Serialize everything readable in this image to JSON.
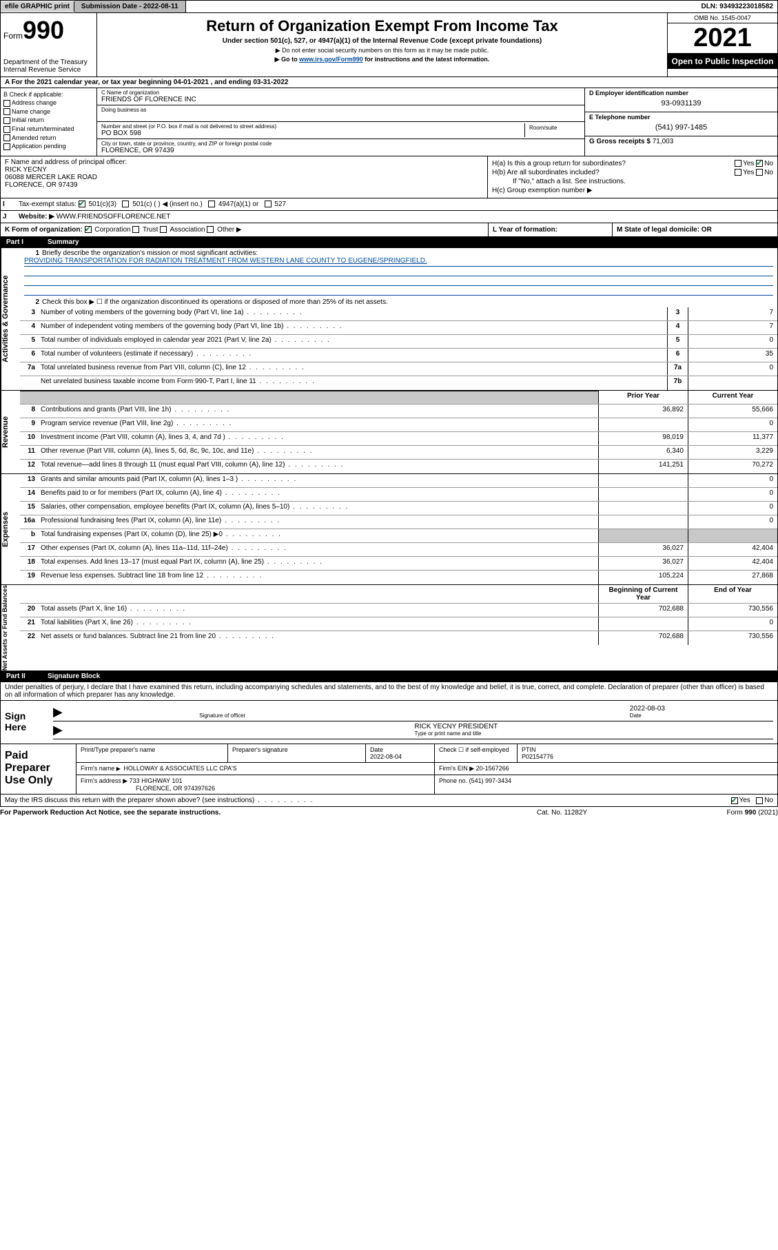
{
  "topbar": {
    "efile": "efile GRAPHIC print",
    "subdate_label": "Submission Date - 2022-08-11",
    "dln": "DLN: 93493223018582"
  },
  "header": {
    "form_label": "Form",
    "form_num": "990",
    "title": "Return of Organization Exempt From Income Tax",
    "subtitle": "Under section 501(c), 527, or 4947(a)(1) of the Internal Revenue Code (except private foundations)",
    "note1": "▶ Do not enter social security numbers on this form as it may be made public.",
    "note2_pre": "▶ Go to ",
    "note2_link": "www.irs.gov/Form990",
    "note2_post": " for instructions and the latest information.",
    "dept": "Department of the Treasury\nInternal Revenue Service",
    "omb": "OMB No. 1545-0047",
    "year": "2021",
    "open_public": "Open to Public Inspection"
  },
  "section_a": "A For the 2021 calendar year, or tax year beginning 04-01-2021   , and ending 03-31-2022",
  "col_b": {
    "label": "B Check if applicable:",
    "opts": [
      "Address change",
      "Name change",
      "Initial return",
      "Final return/terminated",
      "Amended return",
      "Application pending"
    ]
  },
  "col_c": {
    "name_label": "C Name of organization",
    "name": "FRIENDS OF FLORENCE INC",
    "dba_label": "Doing business as",
    "addr_label": "Number and street (or P.O. box if mail is not delivered to street address)",
    "room_label": "Room/suite",
    "addr": "PO BOX 598",
    "city_label": "City or town, state or province, country, and ZIP or foreign postal code",
    "city": "FLORENCE, OR  97439"
  },
  "col_d": {
    "ein_label": "D Employer identification number",
    "ein": "93-0931139",
    "phone_label": "E Telephone number",
    "phone": "(541) 997-1485",
    "gross_label": "G Gross receipts $",
    "gross": "71,003"
  },
  "block_f": {
    "label": "F  Name and address of principal officer:",
    "name": "RICK YECNY",
    "addr1": "06088 MERCER LAKE ROAD",
    "addr2": "FLORENCE, OR  97439"
  },
  "block_h": {
    "ha": "H(a)  Is this a group return for subordinates?",
    "hb": "H(b)  Are all subordinates included?",
    "hb_note": "If \"No,\" attach a list. See instructions.",
    "hc": "H(c)  Group exemption number ▶",
    "yes": "Yes",
    "no": "No"
  },
  "row_i": {
    "label": "Tax-exempt status:",
    "opts": [
      "501(c)(3)",
      "501(c) (  ) ◀ (insert no.)",
      "4947(a)(1) or",
      "527"
    ]
  },
  "row_j": {
    "label": "Website: ▶",
    "val": "WWW.FRIENDSOFFLORENCE.NET"
  },
  "row_k": {
    "main": "K Form of organization:",
    "opts": [
      "Corporation",
      "Trust",
      "Association",
      "Other ▶"
    ],
    "l_label": "L Year of formation:",
    "m_label": "M State of legal domicile: OR"
  },
  "part1": {
    "num": "Part I",
    "title": "Summary"
  },
  "summary": {
    "q1": "Briefly describe the organization's mission or most significant activities:",
    "mission": "PROVIDING TRANSPORTATION FOR RADIATION TREATMENT FROM WESTERN LANE COUNTY TO EUGENE/SPRINGFIELD.",
    "q2": "Check this box ▶ ☐  if the organization discontinued its operations or disposed of more than 25% of its net assets.",
    "rows_gov": [
      {
        "n": "3",
        "desc": "Number of voting members of the governing body (Part VI, line 1a)",
        "box": "3",
        "val": "7"
      },
      {
        "n": "4",
        "desc": "Number of independent voting members of the governing body (Part VI, line 1b)",
        "box": "4",
        "val": "7"
      },
      {
        "n": "5",
        "desc": "Total number of individuals employed in calendar year 2021 (Part V, line 2a)",
        "box": "5",
        "val": "0"
      },
      {
        "n": "6",
        "desc": "Total number of volunteers (estimate if necessary)",
        "box": "6",
        "val": "35"
      },
      {
        "n": "7a",
        "desc": "Total unrelated business revenue from Part VIII, column (C), line 12",
        "box": "7a",
        "val": "0"
      },
      {
        "n": "",
        "desc": "Net unrelated business taxable income from Form 990-T, Part I, line 11",
        "box": "7b",
        "val": ""
      }
    ],
    "hdr_prior": "Prior Year",
    "hdr_curr": "Current Year",
    "rows_rev": [
      {
        "n": "8",
        "desc": "Contributions and grants (Part VIII, line 1h)",
        "prior": "36,892",
        "curr": "55,666"
      },
      {
        "n": "9",
        "desc": "Program service revenue (Part VIII, line 2g)",
        "prior": "",
        "curr": "0"
      },
      {
        "n": "10",
        "desc": "Investment income (Part VIII, column (A), lines 3, 4, and 7d )",
        "prior": "98,019",
        "curr": "11,377"
      },
      {
        "n": "11",
        "desc": "Other revenue (Part VIII, column (A), lines 5, 6d, 8c, 9c, 10c, and 11e)",
        "prior": "6,340",
        "curr": "3,229"
      },
      {
        "n": "12",
        "desc": "Total revenue—add lines 8 through 11 (must equal Part VIII, column (A), line 12)",
        "prior": "141,251",
        "curr": "70,272"
      }
    ],
    "rows_exp": [
      {
        "n": "13",
        "desc": "Grants and similar amounts paid (Part IX, column (A), lines 1–3 )",
        "prior": "",
        "curr": "0"
      },
      {
        "n": "14",
        "desc": "Benefits paid to or for members (Part IX, column (A), line 4)",
        "prior": "",
        "curr": "0"
      },
      {
        "n": "15",
        "desc": "Salaries, other compensation, employee benefits (Part IX, column (A), lines 5–10)",
        "prior": "",
        "curr": "0"
      },
      {
        "n": "16a",
        "desc": "Professional fundraising fees (Part IX, column (A), line 11e)",
        "prior": "",
        "curr": "0"
      },
      {
        "n": "b",
        "desc": "Total fundraising expenses (Part IX, column (D), line 25) ▶0",
        "prior": "shade",
        "curr": "shade"
      },
      {
        "n": "17",
        "desc": "Other expenses (Part IX, column (A), lines 11a–11d, 11f–24e)",
        "prior": "36,027",
        "curr": "42,404"
      },
      {
        "n": "18",
        "desc": "Total expenses. Add lines 13–17 (must equal Part IX, column (A), line 25)",
        "prior": "36,027",
        "curr": "42,404"
      },
      {
        "n": "19",
        "desc": "Revenue less expenses. Subtract line 18 from line 12",
        "prior": "105,224",
        "curr": "27,868"
      }
    ],
    "hdr_beg": "Beginning of Current Year",
    "hdr_end": "End of Year",
    "rows_net": [
      {
        "n": "20",
        "desc": "Total assets (Part X, line 16)",
        "prior": "702,688",
        "curr": "730,556"
      },
      {
        "n": "21",
        "desc": "Total liabilities (Part X, line 26)",
        "prior": "",
        "curr": "0"
      },
      {
        "n": "22",
        "desc": "Net assets or fund balances. Subtract line 21 from line 20",
        "prior": "702,688",
        "curr": "730,556"
      }
    ]
  },
  "part2": {
    "num": "Part II",
    "title": "Signature Block"
  },
  "sig_decl": "Under penalties of perjury, I declare that I have examined this return, including accompanying schedules and statements, and to the best of my knowledge and belief, it is true, correct, and complete. Declaration of preparer (other than officer) is based on all information of which preparer has any knowledge.",
  "sign": {
    "label": "Sign Here",
    "sig_label": "Signature of officer",
    "date": "2022-08-03",
    "date_label": "Date",
    "name": "RICK YECNY PRESIDENT",
    "name_label": "Type or print name and title"
  },
  "paid": {
    "label": "Paid Preparer Use Only",
    "r1": {
      "c1_label": "Print/Type preparer's name",
      "c2_label": "Preparer's signature",
      "c3_label": "Date",
      "c3": "2022-08-04",
      "c4_label": "Check ☐ if self-employed",
      "c5_label": "PTIN",
      "c5": "P02154776"
    },
    "r2": {
      "label": "Firm's name",
      "val": "HOLLOWAY & ASSOCIATES LLC CPA'S",
      "ein_label": "Firm's EIN ▶",
      "ein": "20-1567266"
    },
    "r3": {
      "label": "Firm's address ▶",
      "val": "733 HIGHWAY 101",
      "city": "FLORENCE, OR  974397626",
      "ph_label": "Phone no.",
      "ph": "(541) 997-3434"
    }
  },
  "footer": {
    "q": "May the IRS discuss this return with the preparer shown above? (see instructions)",
    "yes": "Yes",
    "no": "No",
    "paperwork": "For Paperwork Reduction Act Notice, see the separate instructions.",
    "cat": "Cat. No. 11282Y",
    "form": "Form 990 (2021)"
  }
}
